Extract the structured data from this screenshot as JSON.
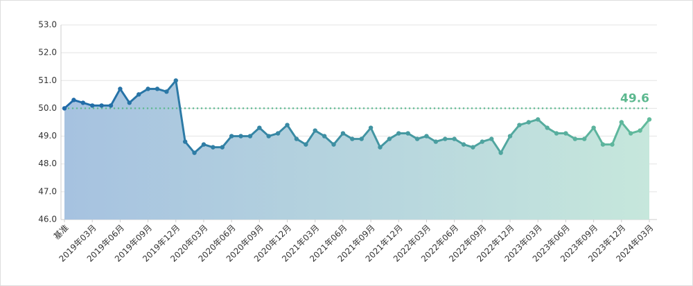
{
  "chart_data": {
    "type": "line",
    "categories": [
      "基准",
      null,
      null,
      "2019年03月",
      null,
      null,
      "2019年06月",
      null,
      null,
      "2019年09月",
      null,
      null,
      "2019年12月",
      null,
      null,
      "2020年03月",
      null,
      null,
      "2020年06月",
      null,
      null,
      "2020年09月",
      null,
      null,
      "2020年12月",
      null,
      null,
      "2021年03月",
      null,
      null,
      "2021年06月",
      null,
      null,
      "2021年09月",
      null,
      null,
      "2021年12月",
      null,
      null,
      "2022年03月",
      null,
      null,
      "2022年06月",
      null,
      null,
      "2022年09月",
      null,
      null,
      "2022年12月",
      null,
      null,
      "2023年03月",
      null,
      null,
      "2023年06月",
      null,
      null,
      "2023年09月",
      null,
      null,
      "2023年12月",
      null,
      null,
      "2024年03月"
    ],
    "values": [
      50.0,
      50.3,
      50.2,
      50.1,
      50.1,
      50.1,
      50.7,
      50.2,
      50.5,
      50.7,
      50.7,
      50.6,
      51.0,
      48.8,
      48.4,
      48.7,
      48.6,
      48.6,
      49.0,
      49.0,
      49.0,
      49.3,
      49.0,
      49.1,
      49.4,
      48.9,
      48.7,
      49.2,
      49.0,
      48.7,
      49.1,
      48.9,
      48.9,
      49.3,
      48.6,
      48.9,
      49.1,
      49.1,
      48.9,
      49.0,
      48.8,
      48.9,
      48.9,
      48.7,
      48.6,
      48.8,
      48.9,
      48.4,
      49.0,
      49.4,
      49.5,
      49.6,
      49.3,
      49.1,
      49.1,
      48.9,
      48.9,
      49.3,
      48.7,
      48.7,
      49.5,
      49.1,
      49.2,
      49.6
    ],
    "line_color_start": "#1f6aa8",
    "line_color_end": "#62bb9c",
    "area_color_start": "#a6c2e0",
    "area_color_end": "#c6e7dc",
    "reference_line": 50.0,
    "reference_color": "#5cb88f",
    "ylim": [
      46,
      53
    ],
    "yticks": [
      {
        "value": 46,
        "label": "46.0"
      },
      {
        "value": 47,
        "label": "47.0"
      },
      {
        "value": 48,
        "label": "48.0"
      },
      {
        "value": 49,
        "label": "49.0"
      },
      {
        "value": 50,
        "label": "50.0"
      },
      {
        "value": 51,
        "label": "51.0"
      },
      {
        "value": 52,
        "label": "52.0"
      },
      {
        "value": 53,
        "label": "53.0"
      }
    ],
    "grid": true
  }
}
